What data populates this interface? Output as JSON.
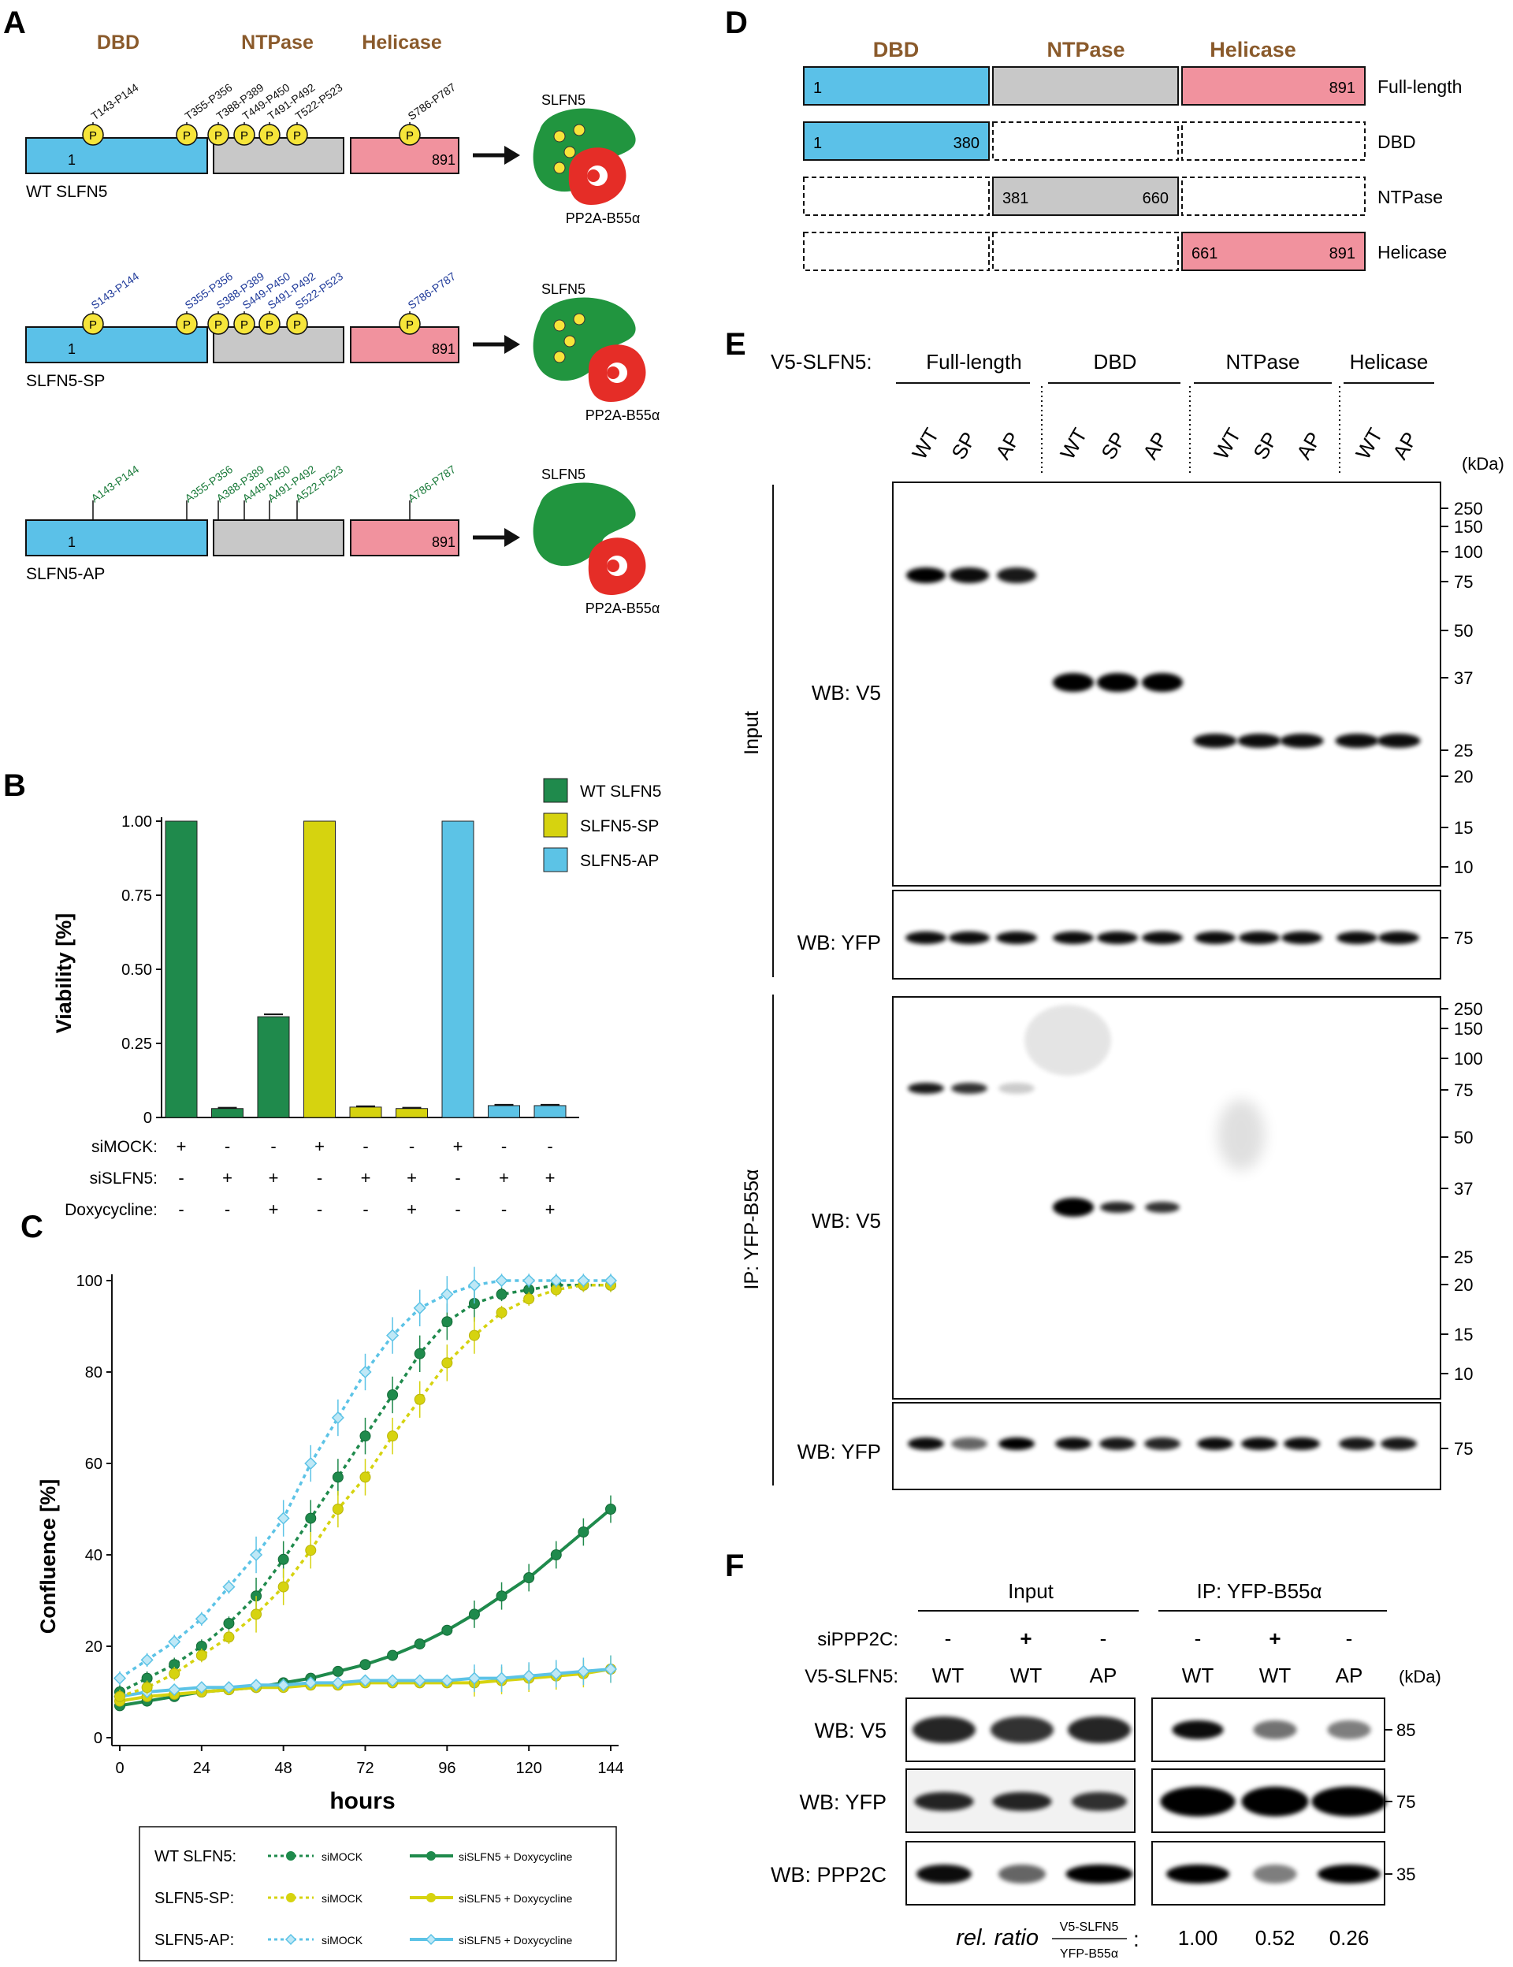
{
  "panels": {
    "A": "A",
    "B": "B",
    "C": "C",
    "D": "D",
    "E": "E",
    "F": "F"
  },
  "colors": {
    "dbd": "#5bc1e8",
    "ntpase": "#c8c8c8",
    "helicase": "#f1929e",
    "domain_title": "#8a5a2b",
    "wt": "#1f8a4c",
    "sp": "#d6d30f",
    "ap": "#5cc3e6",
    "slfn5": "#21953f",
    "pp2a": "#e52d27",
    "phospho": "#f6e53a"
  },
  "panelA": {
    "domains": [
      "DBD",
      "NTPase",
      "Helicase"
    ],
    "start": "1",
    "end": "891",
    "sites": [
      "T143-P144",
      "T355-P356",
      "T388-P389",
      "T449-P450",
      "T491-P492",
      "T522-P523",
      "S786-P787"
    ],
    "sp_sites": [
      "S143-P144",
      "S355-P356",
      "S388-P389",
      "S449-P450",
      "S491-P492",
      "S522-P523",
      "S786-P787"
    ],
    "ap_sites": [
      "A143-P144",
      "A355-P356",
      "A388-P389",
      "A449-P450",
      "A491-P492",
      "A522-P523",
      "A786-P787"
    ],
    "phospho_label": "P",
    "constructs": [
      "WT SLFN5",
      "SLFN5-SP",
      "SLFN5-AP"
    ],
    "protein": "SLFN5",
    "partner": "PP2A-B55α"
  },
  "panelB": {
    "legend": [
      "WT SLFN5",
      "SLFN5-SP",
      "SLFN5-AP"
    ],
    "condition_labels": [
      "siMOCK:",
      "siSLFN5:",
      "Doxycycline:"
    ],
    "conditions": [
      [
        "+",
        "-",
        "-",
        "+",
        "-",
        "-",
        "+",
        "-",
        "-"
      ],
      [
        "-",
        "+",
        "+",
        "-",
        "+",
        "+",
        "-",
        "+",
        "+"
      ],
      [
        "-",
        "-",
        "+",
        "-",
        "-",
        "+",
        "-",
        "-",
        "+"
      ]
    ]
  },
  "panelC": {
    "legend_rows": [
      "WT SLFN5:",
      "SLFN5-SP:",
      "SLFN5-AP:"
    ],
    "legend_dashed": "siMOCK",
    "legend_solid": "siSLFN5 + Doxycycline"
  },
  "chart_data": [
    {
      "type": "bar",
      "ylabel": "Viability [%]",
      "ylim": [
        0,
        1.0
      ],
      "yticks": [
        "0",
        "0.25",
        "0.50",
        "0.75",
        "1.00"
      ],
      "categories": [
        "WT siMOCK",
        "WT siSLFN5",
        "WT siSLFN5+Dox",
        "SP siMOCK",
        "SP siSLFN5",
        "SP siSLFN5+Dox",
        "AP siMOCK",
        "AP siSLFN5",
        "AP siSLFN5+Dox"
      ],
      "values": [
        1.0,
        0.03,
        0.34,
        1.0,
        0.035,
        0.03,
        1.0,
        0.04,
        0.04
      ],
      "errors": [
        0,
        0.003,
        0.008,
        0,
        0.003,
        0.003,
        0,
        0.003,
        0.003
      ],
      "bar_groups": [
        "WT SLFN5",
        "WT SLFN5",
        "WT SLFN5",
        "SLFN5-SP",
        "SLFN5-SP",
        "SLFN5-SP",
        "SLFN5-AP",
        "SLFN5-AP",
        "SLFN5-AP"
      ],
      "legend_position": "top-right"
    },
    {
      "type": "line",
      "xlabel": "hours",
      "ylabel": "Confluence [%]",
      "xlim": [
        0,
        144
      ],
      "ylim": [
        0,
        100
      ],
      "xticks": [
        "0",
        "24",
        "48",
        "72",
        "96",
        "120",
        "144"
      ],
      "yticks": [
        "0",
        "20",
        "40",
        "60",
        "80",
        "100"
      ],
      "x": [
        0,
        8,
        16,
        24,
        32,
        40,
        48,
        56,
        64,
        72,
        80,
        88,
        96,
        104,
        112,
        120,
        128,
        136,
        144
      ],
      "series": [
        {
          "name": "WT SLFN5: siMOCK",
          "color_key": "wt",
          "style": "dashed",
          "values": [
            10,
            13,
            16,
            20,
            25,
            31,
            39,
            48,
            57,
            66,
            75,
            84,
            91,
            95,
            97,
            98,
            99,
            99,
            99
          ]
        },
        {
          "name": "SLFN5-SP: siMOCK",
          "color_key": "sp",
          "style": "dashed",
          "values": [
            9,
            11,
            14,
            18,
            22,
            27,
            33,
            41,
            50,
            57,
            66,
            74,
            82,
            88,
            93,
            96,
            98,
            99,
            99
          ]
        },
        {
          "name": "SLFN5-AP: siMOCK",
          "color_key": "ap",
          "style": "dashed",
          "values": [
            13,
            17,
            21,
            26,
            33,
            40,
            48,
            60,
            70,
            80,
            88,
            94,
            97,
            99,
            100,
            100,
            100,
            100,
            100
          ]
        },
        {
          "name": "WT SLFN5: siSLFN5 + Doxycycline",
          "color_key": "wt",
          "style": "solid",
          "values": [
            7,
            8,
            9,
            10,
            10.5,
            11,
            12,
            13,
            14.5,
            16,
            18,
            20.5,
            23.5,
            27,
            31,
            35,
            40,
            45,
            50
          ]
        },
        {
          "name": "SLFN5-SP: siSLFN5 + Doxycycline",
          "color_key": "sp",
          "style": "solid",
          "values": [
            8,
            9,
            9.5,
            10,
            10.5,
            11,
            11,
            11.5,
            11.5,
            12,
            12,
            12,
            12,
            12,
            12.5,
            13,
            13.5,
            14,
            15
          ]
        },
        {
          "name": "SLFN5-AP: siSLFN5 + Doxycycline",
          "color_key": "ap",
          "style": "solid",
          "values": [
            9,
            10,
            10.5,
            11,
            11,
            11.5,
            11.5,
            12,
            12,
            12.5,
            12.5,
            12.5,
            12.5,
            13,
            13,
            13.5,
            14,
            14.5,
            15
          ]
        }
      ]
    }
  ],
  "panelD": {
    "domains": [
      "DBD",
      "NTPase",
      "Helicase"
    ],
    "rows": [
      {
        "label": "Full-length",
        "nums": [
          "1",
          "891"
        ]
      },
      {
        "label": "DBD",
        "nums": [
          "1",
          "380"
        ]
      },
      {
        "label": "NTPase",
        "nums": [
          "381",
          "660"
        ]
      },
      {
        "label": "Helicase",
        "nums": [
          "661",
          "891"
        ]
      }
    ]
  },
  "panelE": {
    "construct_label": "V5-SLFN5:",
    "groups": [
      "Full-length",
      "DBD",
      "NTPase",
      "Helicase"
    ],
    "lanes": [
      "WT",
      "SP",
      "AP",
      "WT",
      "SP",
      "AP",
      "WT",
      "SP",
      "AP",
      "WT",
      "AP"
    ],
    "kda_unit": "(kDa)",
    "markers_big": [
      "250",
      "150",
      "100",
      "75",
      "50",
      "37",
      "25",
      "20",
      "15",
      "10"
    ],
    "input_label": "Input",
    "ip_label": "IP:  YFP-B55α",
    "wb_v5": "WB: V5",
    "wb_yfp": "WB: YFP",
    "yfp_marker": "75"
  },
  "panelF": {
    "input_label": "Input",
    "ip_label": "IP:  YFP-B55α",
    "sippp2c_label": "siPPP2C:",
    "v5_label": "V5-SLFN5:",
    "sippp2c": [
      "-",
      "+",
      "-",
      "-",
      "+",
      "-"
    ],
    "lanes": [
      "WT",
      "WT",
      "AP",
      "WT",
      "WT",
      "AP"
    ],
    "kda_unit": "(kDa)",
    "blots": [
      {
        "label": "WB: V5",
        "marker": "85"
      },
      {
        "label": "WB: YFP",
        "marker": "75"
      },
      {
        "label": "WB: PPP2C",
        "marker": "35"
      }
    ],
    "ratio_label": "rel. ratio",
    "ratio_num": "V5-SLFN5",
    "ratio_den": "YFP-B55α",
    "ratios": [
      "1.00",
      "0.52",
      "0.26"
    ]
  }
}
